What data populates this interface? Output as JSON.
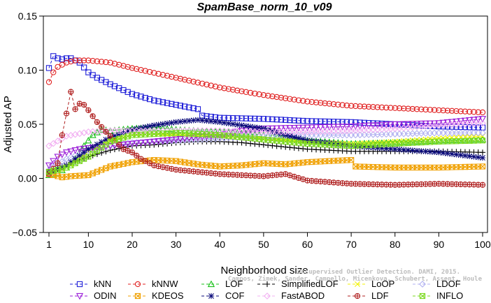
{
  "chart_data": {
    "type": "line",
    "title": "SpamBase_norm_10_v09",
    "xlabel": "Neighborhood size",
    "ylabel": "Adjusted AP",
    "xlim": [
      1,
      100
    ],
    "ylim": [
      -0.05,
      0.15
    ],
    "xticks": [
      1,
      10,
      20,
      30,
      40,
      50,
      60,
      70,
      80,
      90,
      100
    ],
    "yticks": [
      -0.05,
      0.0,
      0.05,
      0.1,
      0.15
    ],
    "ytick_labels": [
      "−0.05",
      "0.00",
      "0.05",
      "0.10",
      "0.15"
    ],
    "grid": false,
    "legend_position": "bottom",
    "watermark": "Campos, Zimek, Sander, Campello, Micenkova, Schubert, Assent, Houle",
    "watermark_line1": "Unsupervised Outlier Detection. DAMI, 2015.",
    "series": [
      {
        "name": "kNN",
        "color": "#1f1fd8",
        "marker": "square",
        "points": [
          [
            1,
            0.102
          ],
          [
            2,
            0.113
          ],
          [
            3,
            0.111
          ],
          [
            4,
            0.11
          ],
          [
            5,
            0.111
          ],
          [
            6,
            0.111
          ],
          [
            7,
            0.109
          ],
          [
            8,
            0.107
          ],
          [
            10,
            0.098
          ],
          [
            12,
            0.093
          ],
          [
            15,
            0.087
          ],
          [
            20,
            0.078
          ],
          [
            25,
            0.072
          ],
          [
            30,
            0.068
          ],
          [
            35,
            0.064
          ],
          [
            36,
            0.058
          ],
          [
            40,
            0.056
          ],
          [
            50,
            0.055
          ],
          [
            60,
            0.053
          ],
          [
            70,
            0.052
          ],
          [
            80,
            0.05
          ],
          [
            90,
            0.048
          ],
          [
            100,
            0.047
          ]
        ]
      },
      {
        "name": "kNNW",
        "color": "#e02020",
        "marker": "circle",
        "points": [
          [
            1,
            0.089
          ],
          [
            2,
            0.098
          ],
          [
            3,
            0.103
          ],
          [
            5,
            0.107
          ],
          [
            7,
            0.109
          ],
          [
            10,
            0.109
          ],
          [
            15,
            0.107
          ],
          [
            20,
            0.102
          ],
          [
            30,
            0.093
          ],
          [
            40,
            0.084
          ],
          [
            50,
            0.077
          ],
          [
            60,
            0.071
          ],
          [
            70,
            0.067
          ],
          [
            80,
            0.065
          ],
          [
            90,
            0.063
          ],
          [
            100,
            0.061
          ]
        ]
      },
      {
        "name": "LOF",
        "color": "#19c019",
        "marker": "triangle-up",
        "points": [
          [
            1,
            0.003
          ],
          [
            3,
            0.005
          ],
          [
            5,
            0.01
          ],
          [
            7,
            0.018
          ],
          [
            9,
            0.03
          ],
          [
            11,
            0.04
          ],
          [
            13,
            0.045
          ],
          [
            15,
            0.044
          ],
          [
            20,
            0.046
          ],
          [
            25,
            0.047
          ],
          [
            30,
            0.045
          ],
          [
            40,
            0.043
          ],
          [
            50,
            0.04
          ],
          [
            60,
            0.035
          ],
          [
            70,
            0.032
          ],
          [
            80,
            0.033
          ],
          [
            90,
            0.035
          ],
          [
            100,
            0.036
          ]
        ]
      },
      {
        "name": "SimplifiedLOF",
        "color": "#000000",
        "marker": "plus",
        "points": [
          [
            1,
            0.008
          ],
          [
            3,
            0.01
          ],
          [
            6,
            0.014
          ],
          [
            10,
            0.02
          ],
          [
            15,
            0.026
          ],
          [
            20,
            0.03
          ],
          [
            25,
            0.031
          ],
          [
            30,
            0.033
          ],
          [
            35,
            0.034
          ],
          [
            40,
            0.034
          ],
          [
            45,
            0.033
          ],
          [
            50,
            0.031
          ],
          [
            60,
            0.027
          ],
          [
            70,
            0.025
          ],
          [
            80,
            0.025
          ],
          [
            90,
            0.025
          ],
          [
            100,
            0.024
          ]
        ]
      },
      {
        "name": "LoOP",
        "color": "#f2f200",
        "marker": "cross",
        "points": [
          [
            1,
            0.004
          ],
          [
            5,
            0.01
          ],
          [
            10,
            0.025
          ],
          [
            15,
            0.035
          ],
          [
            20,
            0.04
          ],
          [
            25,
            0.041
          ],
          [
            30,
            0.04
          ],
          [
            40,
            0.039
          ],
          [
            50,
            0.037
          ],
          [
            60,
            0.034
          ],
          [
            70,
            0.032
          ],
          [
            80,
            0.034
          ],
          [
            90,
            0.037
          ],
          [
            100,
            0.039
          ]
        ]
      },
      {
        "name": "LDOF",
        "color": "#b0b0f0",
        "marker": "diamond",
        "points": [
          [
            1,
            0.008
          ],
          [
            5,
            0.018
          ],
          [
            10,
            0.026
          ],
          [
            15,
            0.03
          ],
          [
            20,
            0.033
          ],
          [
            30,
            0.035
          ],
          [
            40,
            0.037
          ],
          [
            50,
            0.039
          ],
          [
            60,
            0.04
          ],
          [
            70,
            0.04
          ],
          [
            80,
            0.041
          ],
          [
            90,
            0.042
          ],
          [
            100,
            0.042
          ]
        ]
      },
      {
        "name": "ODIN",
        "color": "#9b1fd8",
        "marker": "triangle-down",
        "points": [
          [
            1,
            0.012
          ],
          [
            3,
            0.02
          ],
          [
            5,
            0.024
          ],
          [
            8,
            0.027
          ],
          [
            10,
            0.028
          ],
          [
            15,
            0.03
          ],
          [
            20,
            0.032
          ],
          [
            25,
            0.034
          ],
          [
            30,
            0.036
          ],
          [
            35,
            0.038
          ],
          [
            40,
            0.04
          ],
          [
            45,
            0.044
          ],
          [
            50,
            0.046
          ],
          [
            60,
            0.047
          ],
          [
            70,
            0.048
          ],
          [
            80,
            0.05
          ],
          [
            90,
            0.051
          ],
          [
            100,
            0.055
          ]
        ]
      },
      {
        "name": "KDEOS",
        "color": "#f0a000",
        "marker": "square-x",
        "points": [
          [
            1,
            0.004
          ],
          [
            4,
            0.001
          ],
          [
            6,
            0.002
          ],
          [
            10,
            0.003
          ],
          [
            15,
            0.011
          ],
          [
            20,
            0.015
          ],
          [
            25,
            0.017
          ],
          [
            30,
            0.016
          ],
          [
            35,
            0.013
          ],
          [
            40,
            0.011
          ],
          [
            45,
            0.012
          ],
          [
            50,
            0.014
          ],
          [
            55,
            0.013
          ],
          [
            60,
            0.015
          ],
          [
            65,
            0.016
          ],
          [
            70,
            0.017
          ],
          [
            71,
            0.011
          ],
          [
            80,
            0.01
          ],
          [
            90,
            0.01
          ],
          [
            100,
            0.011
          ]
        ]
      },
      {
        "name": "COF",
        "color": "#0a0a7a",
        "marker": "star",
        "points": [
          [
            1,
            0.005
          ],
          [
            5,
            0.012
          ],
          [
            10,
            0.027
          ],
          [
            15,
            0.038
          ],
          [
            20,
            0.045
          ],
          [
            25,
            0.049
          ],
          [
            30,
            0.052
          ],
          [
            35,
            0.054
          ],
          [
            40,
            0.052
          ],
          [
            45,
            0.049
          ],
          [
            50,
            0.046
          ],
          [
            55,
            0.04
          ],
          [
            60,
            0.035
          ],
          [
            70,
            0.03
          ],
          [
            80,
            0.027
          ],
          [
            90,
            0.024
          ],
          [
            100,
            0.019
          ]
        ]
      },
      {
        "name": "FastABOD",
        "color": "#f2b0f2",
        "marker": "diamond",
        "points": [
          [
            1,
            0.03
          ],
          [
            5,
            0.039
          ],
          [
            10,
            0.043
          ],
          [
            15,
            0.044
          ],
          [
            20,
            0.044
          ],
          [
            30,
            0.044
          ],
          [
            40,
            0.044
          ],
          [
            50,
            0.043
          ],
          [
            60,
            0.043
          ],
          [
            70,
            0.044
          ],
          [
            80,
            0.046
          ],
          [
            90,
            0.049
          ],
          [
            100,
            0.051
          ]
        ]
      },
      {
        "name": "LDF",
        "color": "#b02020",
        "marker": "circle-plus",
        "points": [
          [
            1,
            0.004
          ],
          [
            3,
            0.014
          ],
          [
            4,
            0.04
          ],
          [
            6,
            0.08
          ],
          [
            7,
            0.064
          ],
          [
            8,
            0.069
          ],
          [
            9,
            0.068
          ],
          [
            10,
            0.063
          ],
          [
            12,
            0.052
          ],
          [
            14,
            0.043
          ],
          [
            16,
            0.035
          ],
          [
            18,
            0.027
          ],
          [
            20,
            0.024
          ],
          [
            22,
            0.018
          ],
          [
            25,
            0.012
          ],
          [
            30,
            0.008
          ],
          [
            40,
            0.004
          ],
          [
            50,
            0.002
          ],
          [
            55,
            0.004
          ],
          [
            60,
            -0.002
          ],
          [
            70,
            -0.005
          ],
          [
            80,
            -0.006
          ],
          [
            90,
            -0.005
          ],
          [
            100,
            -0.006
          ]
        ]
      },
      {
        "name": "INFLO",
        "color": "#7ad81e",
        "marker": "square-x",
        "points": [
          [
            1,
            0.006
          ],
          [
            5,
            0.01
          ],
          [
            10,
            0.02
          ],
          [
            15,
            0.034
          ],
          [
            20,
            0.04
          ],
          [
            30,
            0.042
          ],
          [
            40,
            0.04
          ],
          [
            50,
            0.036
          ],
          [
            60,
            0.032
          ],
          [
            70,
            0.03
          ],
          [
            80,
            0.032
          ],
          [
            90,
            0.034
          ],
          [
            100,
            0.035
          ]
        ]
      }
    ]
  }
}
